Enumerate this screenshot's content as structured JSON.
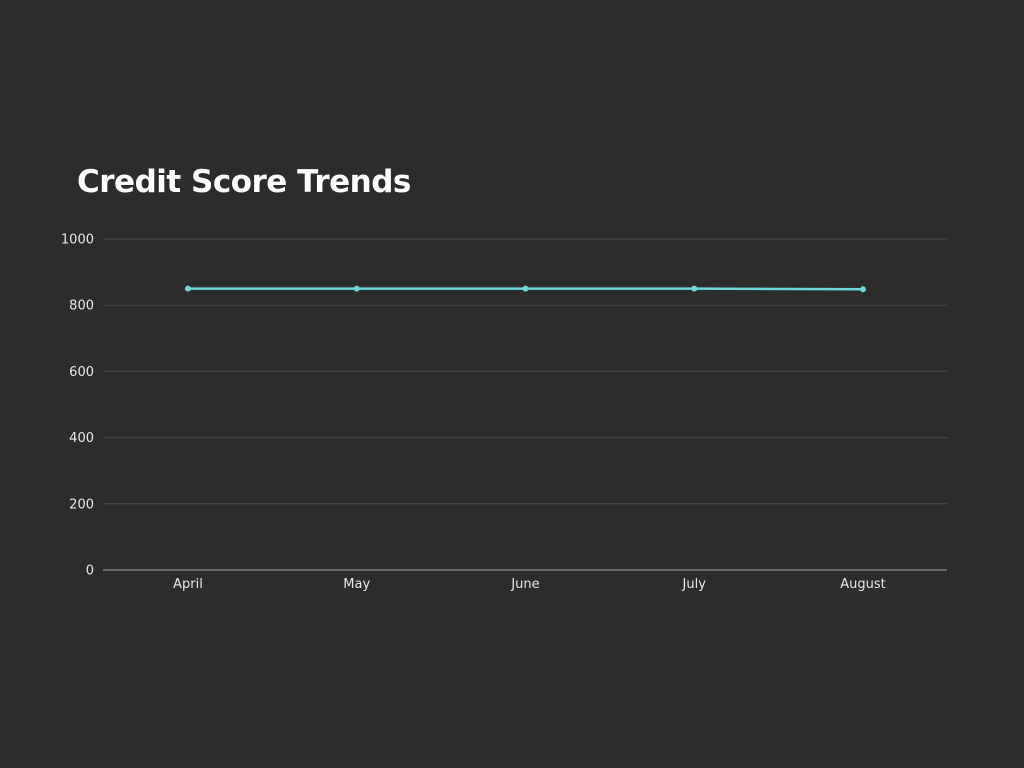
{
  "chart_data": {
    "type": "line",
    "title": "Credit Score Trends",
    "xlabel": "",
    "ylabel": "",
    "categories": [
      "April",
      "May",
      "June",
      "July",
      "August"
    ],
    "series": [
      {
        "values": [
          850,
          850,
          850,
          850,
          848
        ],
        "color": "#6fd6dc"
      }
    ],
    "ylim": [
      0,
      1000
    ],
    "yticks": [
      0,
      200,
      400,
      600,
      800,
      1000
    ],
    "grid": true,
    "legend": "none"
  },
  "colors": {
    "background": "#2c2c2c",
    "line": "#6fd6dc",
    "text": "#ffffff"
  }
}
